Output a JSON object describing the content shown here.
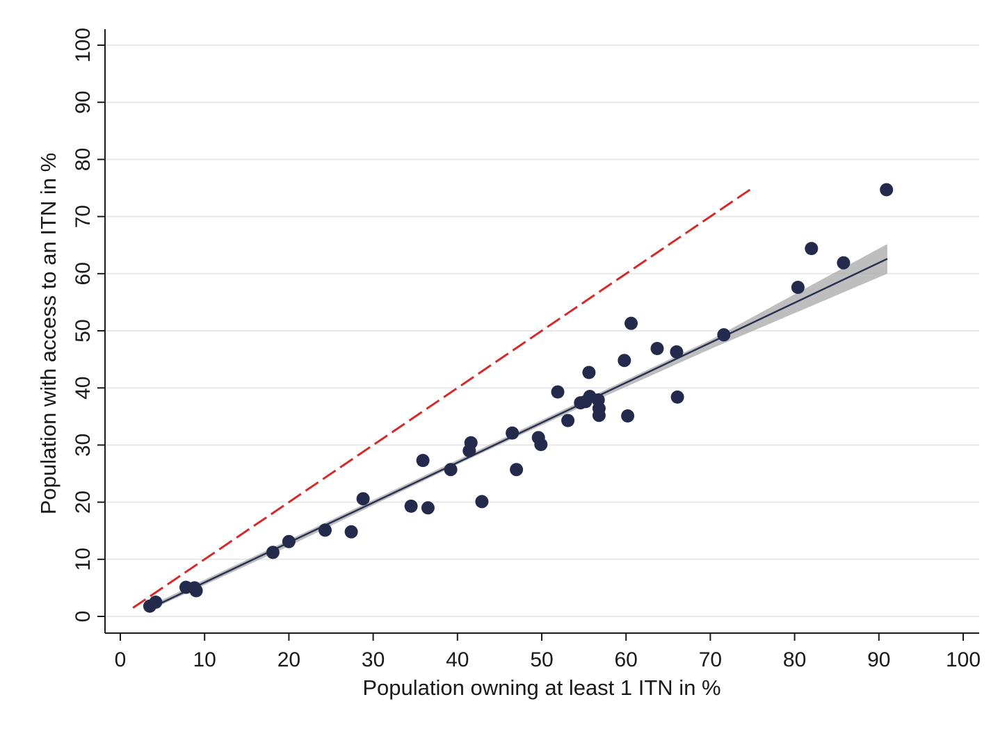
{
  "chart_data": {
    "type": "scatter",
    "title": "",
    "xlabel": "Population owning at least 1 ITN in %",
    "ylabel": "Population with access to an ITN in %",
    "xlim": [
      0,
      100
    ],
    "ylim": [
      0,
      100
    ],
    "xticks": [
      "0",
      "10",
      "20",
      "30",
      "40",
      "50",
      "60",
      "70",
      "80",
      "90",
      "100"
    ],
    "yticks": [
      "0",
      "10",
      "20",
      "30",
      "40",
      "50",
      "60",
      "70",
      "80",
      "90",
      "100"
    ],
    "grid": "horizontal",
    "legend": "none",
    "points": [
      [
        3.5,
        1.8
      ],
      [
        4.2,
        2.5
      ],
      [
        7.8,
        5.1
      ],
      [
        8.8,
        5.0
      ],
      [
        9.0,
        4.5
      ],
      [
        18.1,
        11.2
      ],
      [
        20.0,
        13.1
      ],
      [
        24.3,
        15.1
      ],
      [
        27.4,
        14.8
      ],
      [
        28.8,
        20.6
      ],
      [
        34.5,
        19.3
      ],
      [
        35.9,
        27.3
      ],
      [
        36.5,
        19.0
      ],
      [
        39.2,
        25.7
      ],
      [
        41.4,
        29.0
      ],
      [
        41.6,
        30.4
      ],
      [
        42.9,
        20.1
      ],
      [
        46.5,
        32.1
      ],
      [
        47.0,
        25.7
      ],
      [
        49.6,
        31.3
      ],
      [
        49.9,
        30.1
      ],
      [
        51.9,
        39.3
      ],
      [
        53.1,
        34.3
      ],
      [
        54.6,
        37.4
      ],
      [
        55.2,
        37.6
      ],
      [
        55.6,
        42.7
      ],
      [
        55.7,
        38.5
      ],
      [
        56.7,
        37.9
      ],
      [
        56.8,
        36.4
      ],
      [
        56.8,
        35.2
      ],
      [
        59.8,
        44.8
      ],
      [
        60.2,
        35.1
      ],
      [
        60.6,
        51.3
      ],
      [
        63.7,
        46.9
      ],
      [
        66.0,
        46.3
      ],
      [
        66.1,
        38.4
      ],
      [
        71.6,
        49.3
      ],
      [
        80.4,
        57.6
      ],
      [
        82.0,
        64.4
      ],
      [
        85.8,
        61.9
      ],
      [
        90.9,
        74.7
      ]
    ],
    "fit_line": {
      "x": [
        3.5,
        91.0
      ],
      "y": [
        1.4,
        62.6
      ],
      "color": "#2b3152",
      "ci_band": {
        "x": [
          3.5,
          20,
          40,
          55,
          70,
          91.0
        ],
        "lower": [
          1.1,
          12.3,
          26.6,
          36.9,
          46.8,
          60.0
        ],
        "upper": [
          1.9,
          13.4,
          27.4,
          37.9,
          48.4,
          65.2
        ],
        "color": "#a8a8a8"
      }
    },
    "reference_line": {
      "style": "dashed",
      "x": [
        1.5,
        75.0
      ],
      "y": [
        1.5,
        75.0
      ],
      "color": "#d42a2a"
    },
    "colors": {
      "points": "#232a4b",
      "grid": "#e8e8ea",
      "axis": "#1a1a1a"
    }
  }
}
